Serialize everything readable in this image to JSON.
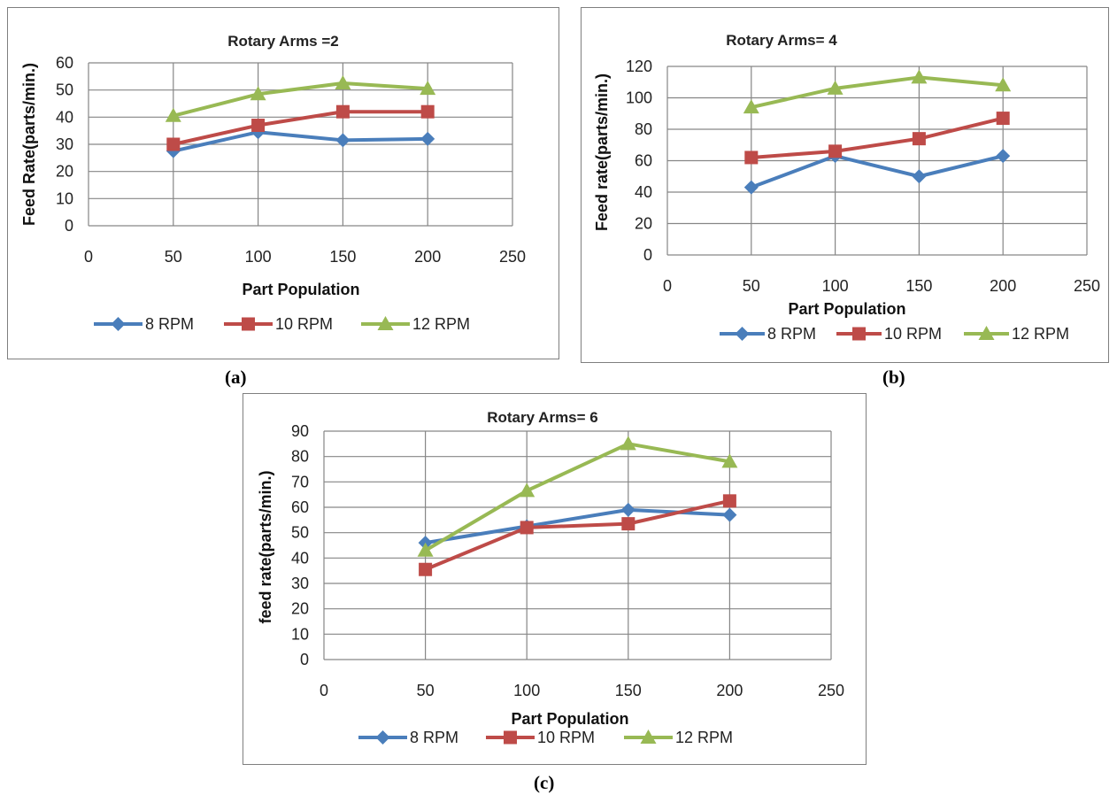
{
  "captions": {
    "a": "(a)",
    "b": "(b)",
    "c": "(c)"
  },
  "colors": {
    "8 RPM": "#4a7ebb",
    "10 RPM": "#be4b48",
    "12 RPM": "#98b954",
    "grid": "#868686"
  },
  "chart_data": [
    {
      "type": "line",
      "title": "Rotary Arms =2",
      "xlabel": "Part Population",
      "ylabel": "Feed Rate(parts/min.)",
      "xlim": [
        0,
        250
      ],
      "xticks": [
        0,
        50,
        100,
        150,
        200,
        250
      ],
      "ylim": [
        0,
        60
      ],
      "yticks": [
        0,
        10,
        20,
        30,
        40,
        50,
        60
      ],
      "grid": "vertical-and-horizontal",
      "legend_position": "bottom",
      "x": [
        50,
        100,
        150,
        200
      ],
      "series": [
        {
          "name": "8 RPM",
          "marker": "diamond",
          "values": [
            27.5,
            34.5,
            31.5,
            32
          ]
        },
        {
          "name": "10 RPM",
          "marker": "square",
          "values": [
            30,
            37,
            42,
            42
          ]
        },
        {
          "name": "12 RPM",
          "marker": "triangle",
          "values": [
            40.5,
            48.5,
            52.5,
            50.5
          ]
        }
      ]
    },
    {
      "type": "line",
      "title": "Rotary Arms= 4",
      "xlabel": "Part Population",
      "ylabel": "Feed rate(parts/min.)",
      "xlim": [
        0,
        250
      ],
      "xticks": [
        0,
        50,
        100,
        150,
        200,
        250
      ],
      "ylim": [
        0,
        120
      ],
      "yticks": [
        0,
        20,
        40,
        60,
        80,
        100,
        120
      ],
      "grid": "vertical-and-horizontal",
      "legend_position": "bottom",
      "x": [
        50,
        100,
        150,
        200
      ],
      "series": [
        {
          "name": "8 RPM",
          "marker": "diamond",
          "values": [
            43,
            63,
            50,
            63
          ]
        },
        {
          "name": "10 RPM",
          "marker": "square",
          "values": [
            62,
            66,
            74,
            87
          ]
        },
        {
          "name": "12 RPM",
          "marker": "triangle",
          "values": [
            94,
            106,
            113,
            108
          ]
        }
      ]
    },
    {
      "type": "line",
      "title": "Rotary Arms= 6",
      "xlabel": "Part Population",
      "ylabel": "feed rate(parts/min.)",
      "xlim": [
        0,
        250
      ],
      "xticks": [
        0,
        50,
        100,
        150,
        200,
        250
      ],
      "ylim": [
        0,
        90
      ],
      "yticks": [
        0,
        10,
        20,
        30,
        40,
        50,
        60,
        70,
        80,
        90
      ],
      "grid": "vertical-and-horizontal",
      "legend_position": "bottom",
      "x": [
        50,
        100,
        150,
        200
      ],
      "series": [
        {
          "name": "8 RPM",
          "marker": "diamond",
          "values": [
            46,
            52.5,
            59,
            57
          ]
        },
        {
          "name": "10 RPM",
          "marker": "square",
          "values": [
            35.5,
            52,
            53.5,
            62.5
          ]
        },
        {
          "name": "12 RPM",
          "marker": "triangle",
          "values": [
            43,
            66.5,
            85,
            78
          ]
        }
      ]
    }
  ]
}
